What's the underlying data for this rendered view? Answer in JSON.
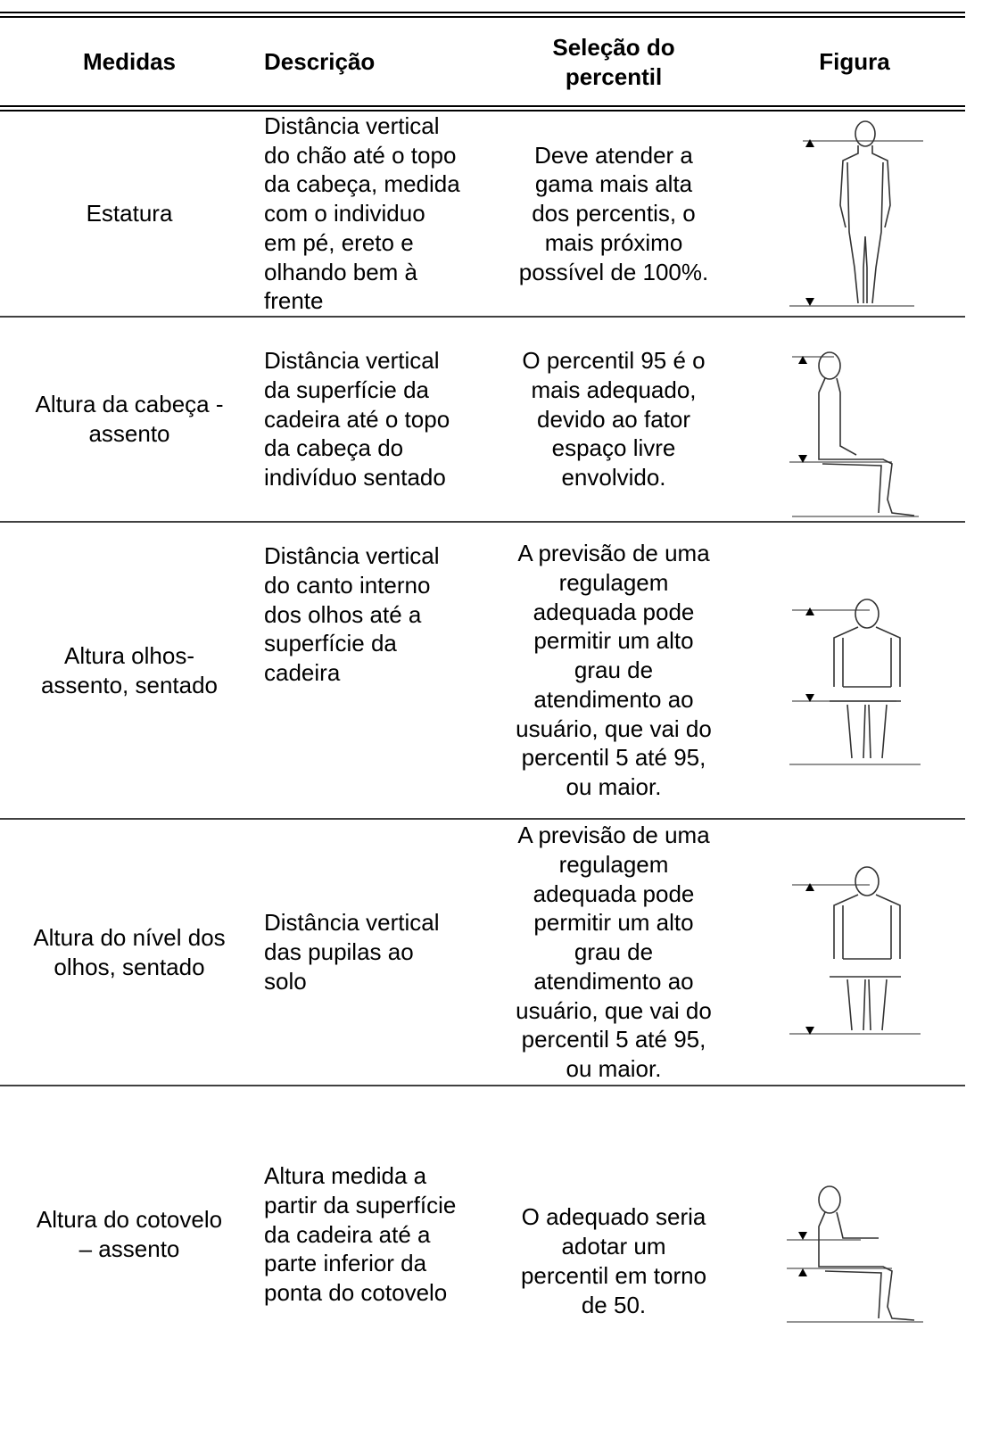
{
  "table": {
    "header": [
      [
        "Medidas"
      ],
      [
        "Descrição"
      ],
      [
        "Seleção do",
        "percentil"
      ],
      [
        "Figura"
      ]
    ],
    "rows": [
      {
        "cells": [
          [
            "Estatura"
          ],
          [
            "Distância vertical",
            "do chão até o topo",
            "da cabeça, medida",
            "com o individuo",
            "em pé, ereto e",
            "olhando bem à",
            "frente"
          ],
          [
            "Deve atender a",
            "gama mais alta",
            "dos percentis, o",
            "mais próximo",
            "possível de 100%."
          ]
        ]
      },
      {
        "cells": [
          [
            "Altura da cabeça -",
            "assento"
          ],
          [
            "Distância vertical",
            "da superfície da",
            "cadeira até o topo",
            "da cabeça do",
            "indivíduo sentado"
          ],
          [
            "O percentil 95 é o",
            "mais adequado,",
            "devido ao fator",
            "espaço livre",
            "envolvido."
          ]
        ]
      },
      {
        "cells": [
          [
            "Altura olhos-",
            "assento, sentado"
          ],
          [
            "Distância vertical",
            "do canto interno",
            "dos olhos até a",
            "superfície da",
            "cadeira"
          ],
          [
            "A previsão de uma",
            "regulagem",
            "adequada pode",
            "permitir um alto",
            "grau de",
            "atendimento ao",
            "usuário, que vai do",
            "percentil 5 até 95,",
            "ou maior."
          ]
        ]
      },
      {
        "cells": [
          [
            "Altura do nível dos",
            "olhos, sentado"
          ],
          [
            "Distância vertical",
            "das pupilas ao",
            "solo"
          ],
          [
            "A previsão de uma",
            "regulagem",
            "adequada pode",
            "permitir um alto",
            "grau de",
            "atendimento ao",
            "usuário, que vai do",
            "percentil 5 até 95,",
            "ou maior."
          ]
        ]
      },
      {
        "cells": [
          [
            "Altura do cotovelo",
            "– assento"
          ],
          [
            "Altura medida a",
            "partir da superfície",
            "da cadeira até a",
            "parte inferior da",
            "ponta do cotovelo"
          ],
          [
            "O adequado seria",
            "adotar um",
            "percentil em torno",
            "de 50."
          ]
        ]
      }
    ]
  }
}
